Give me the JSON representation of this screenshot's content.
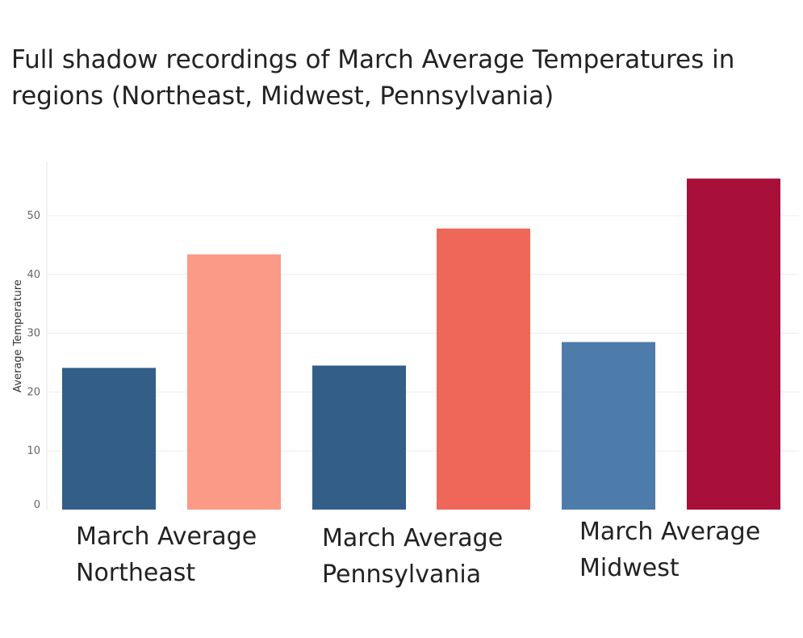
{
  "title": "Full shadow recordings of March Average Temperatures in regions (Northeast, Midwest, Pennsylvania)",
  "chart_data": {
    "type": "bar",
    "title": "Full shadow recordings of March Average Temperatures in regions (Northeast, Midwest, Pennsylvania)",
    "xlabel": "",
    "ylabel": "Average Temperature",
    "ylim": [
      0,
      58
    ],
    "yticks": [
      0,
      10,
      20,
      30,
      40,
      50
    ],
    "grid": true,
    "categories": [
      "March Average\nNortheast",
      "March Average\nPennsylvania",
      "March Average\nMidwest"
    ],
    "bars": [
      {
        "category_index": 0,
        "value": 24.1,
        "color": "#335e88"
      },
      {
        "category_index": 0,
        "value": 43.4,
        "color": "#fb9a86"
      },
      {
        "category_index": 1,
        "value": 24.5,
        "color": "#335e88"
      },
      {
        "category_index": 1,
        "value": 47.8,
        "color": "#ef6758"
      },
      {
        "category_index": 2,
        "value": 28.5,
        "color": "#4e7caa"
      },
      {
        "category_index": 2,
        "value": 56.3,
        "color": "#a80f39"
      }
    ]
  }
}
